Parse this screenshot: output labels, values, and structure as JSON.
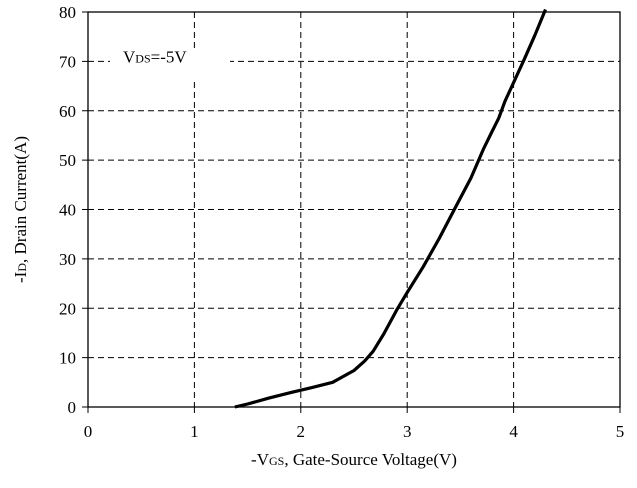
{
  "chart_data": {
    "type": "line",
    "title": "",
    "xlabel": {
      "prefix": "-V",
      "sub": "GS",
      "suffix": ", Gate-Source Voltage(V)"
    },
    "ylabel": {
      "prefix": "-I",
      "sub": "D",
      "suffix": ", Drain Current(A)"
    },
    "annotation": {
      "prefix": "V",
      "sub": "DS",
      "suffix": "=-5V"
    },
    "xlim": [
      0,
      5
    ],
    "ylim": [
      0,
      80
    ],
    "xticks": [
      0,
      1,
      2,
      3,
      4,
      5
    ],
    "yticks": [
      0,
      10,
      20,
      30,
      40,
      50,
      60,
      70,
      80
    ],
    "grid": "dashed",
    "legend": "none",
    "line_color": "#000000",
    "series": [
      {
        "x": [
          1.38,
          1.5,
          1.7,
          1.9,
          2.1,
          2.3,
          2.5,
          2.6,
          2.68,
          2.78,
          2.9,
          3.0,
          3.15,
          3.3,
          3.45,
          3.6,
          3.72,
          3.8,
          3.86,
          3.92,
          4.0,
          4.1,
          4.2,
          4.3
        ],
        "y": [
          0,
          0.6,
          1.8,
          2.9,
          3.9,
          5.0,
          7.4,
          9.3,
          11.3,
          14.8,
          19.6,
          23.2,
          28.4,
          34.1,
          40.3,
          46.4,
          52.4,
          55.9,
          58.5,
          62.0,
          65.7,
          70.4,
          75.3,
          80.5
        ]
      }
    ]
  }
}
